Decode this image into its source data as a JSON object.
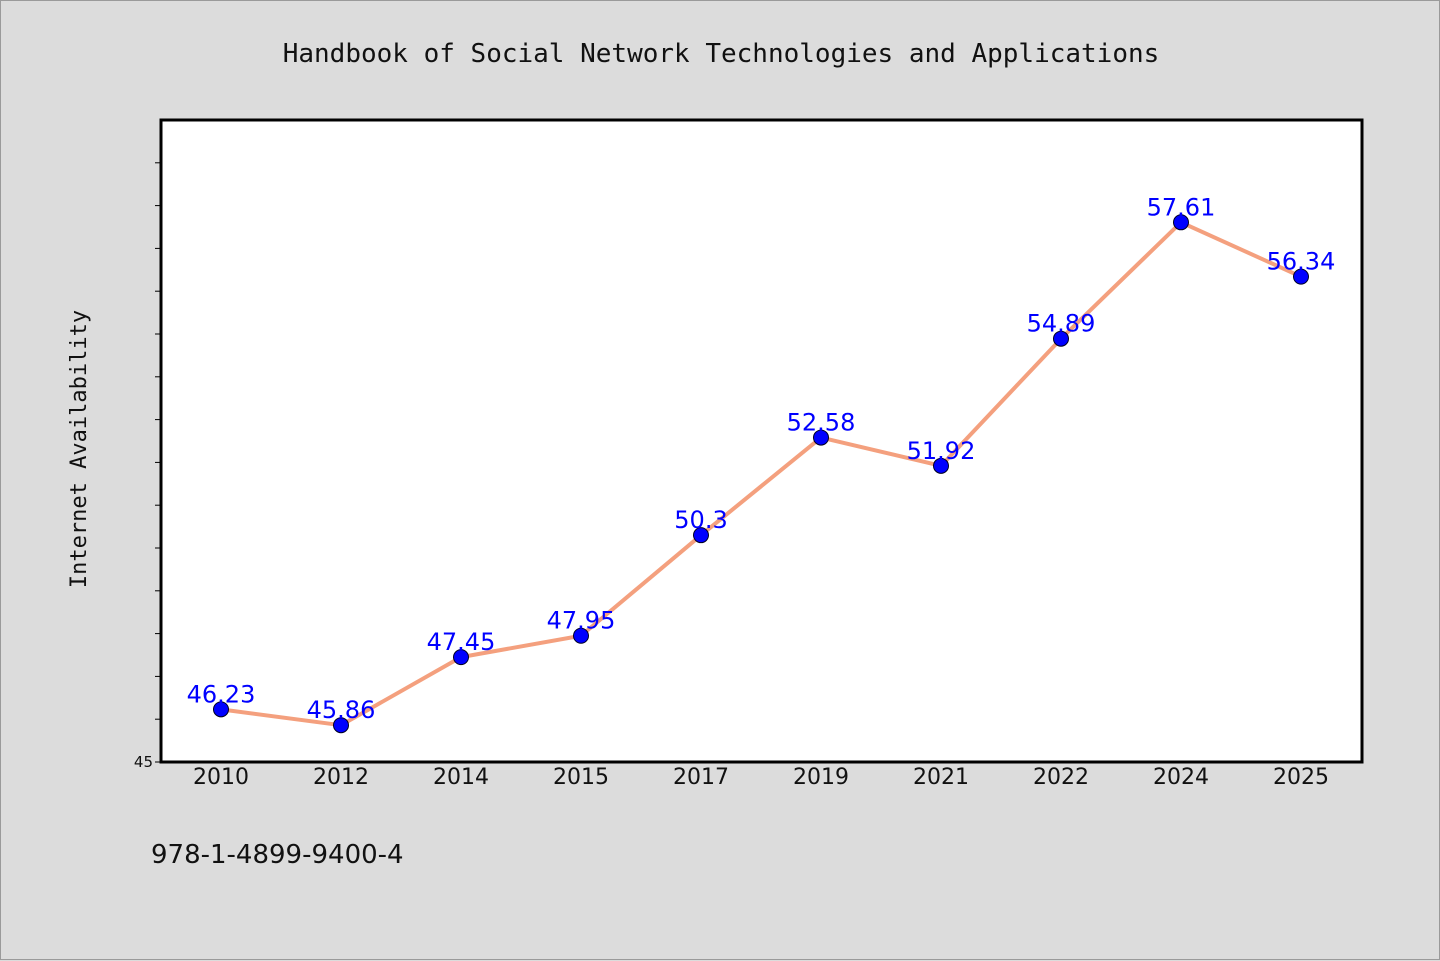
{
  "chart_data": {
    "type": "line",
    "title": "Handbook of Social Network Technologies and Applications",
    "xlabel": "",
    "ylabel": "Internet Availability",
    "categories": [
      "2010",
      "2012",
      "2014",
      "2015",
      "2017",
      "2019",
      "2021",
      "2022",
      "2024",
      "2025"
    ],
    "series": [
      {
        "values": [
          46.23,
          45.86,
          47.45,
          47.95,
          50.3,
          52.58,
          51.92,
          54.89,
          57.61,
          56.34
        ],
        "labels": [
          "46.23",
          "45.86",
          "47.45",
          "47.95",
          "50.3",
          "52.58",
          "51.92",
          "54.89",
          "57.61",
          "56.34"
        ],
        "line_color": "#f4a07e",
        "marker_color": "#0000ff"
      }
    ],
    "ylim": [
      45,
      60
    ],
    "y_tick_labels": [
      "45"
    ],
    "grid": false,
    "legend": "none",
    "footnote": "978-1-4899-9400-4",
    "colors": {
      "background": "#dcdcdc",
      "plot_background": "#ffffff",
      "label": "#0000ff"
    }
  }
}
